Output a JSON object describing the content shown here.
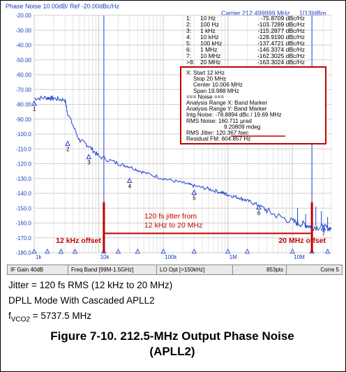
{
  "header": {
    "left": "Phase Noise 10.00dB/ Ref -20.00dBc/Hz",
    "carrier": "Carrier 212.499999 MHz",
    "right": "1[13]dBm"
  },
  "chart_data": {
    "type": "line",
    "x_scale": "log",
    "xlim": [
      1000,
      40000000
    ],
    "ylim": [
      -180,
      -20
    ],
    "yticks": [
      "-20.00",
      "-30.00",
      "-40.00",
      "-50.00",
      "-60.00",
      "-70.00",
      "-80.00",
      "-90.00",
      "-100.0",
      "-110.0",
      "-120.0",
      "-130.0",
      "-140.0",
      "-150.0",
      "-160.0",
      "-170.0",
      "-180.0"
    ],
    "x_tick_labels": [
      "1k",
      "10k",
      "100k",
      "1M",
      "10M"
    ],
    "x": [
      1000,
      1600,
      2000,
      3000,
      3300,
      5000,
      7000,
      10000,
      20000,
      30000,
      50000,
      100000,
      200000,
      300000,
      500000,
      800000,
      1000000,
      1500000,
      2000000,
      3000000,
      5000000,
      10000000,
      15000000,
      20000000,
      30000000,
      40000000
    ],
    "y": [
      -76,
      -75.5,
      -76,
      -77,
      -86,
      -104,
      -108,
      -115,
      -120,
      -122,
      -126,
      -130,
      -133,
      -135,
      -137,
      -139.5,
      -141,
      -143,
      -145,
      -148,
      -154,
      -159,
      -161,
      -162.5,
      -163,
      -163.5
    ],
    "grid": true
  },
  "markers": [
    {
      "id": "1",
      "freq_label": "10 Hz",
      "value": "-75.8709 dBc/Hz"
    },
    {
      "id": "2",
      "freq_label": "100 Hz",
      "value": "-103.7289 dBc/Hz"
    },
    {
      "id": "3",
      "freq_label": "1 kHz",
      "value": "-115.2877 dBc/Hz"
    },
    {
      "id": "4",
      "freq_label": "10 kHz",
      "value": "-128.9190 dBc/Hz"
    },
    {
      "id": "5",
      "freq_label": "100 kHz",
      "value": "-137.4721 dBc/Hz"
    },
    {
      "id": "6",
      "freq_label": "1 MHz",
      "value": "-146.3374 dBc/Hz"
    },
    {
      "id": "7",
      "freq_label": "10 MHz",
      "value": "-162.3025 dBc/Hz"
    },
    {
      "id": ">8",
      "freq_label": "20 MHz",
      "value": "-163.3024 dBc/Hz"
    }
  ],
  "marker_plot_positions": [
    {
      "label": "1",
      "x": 1000,
      "y": -76
    },
    {
      "label": "2",
      "x": 3300,
      "y": -103
    },
    {
      "label": "3",
      "x": 7000,
      "y": -112
    },
    {
      "label": "4",
      "x": 30000,
      "y": -128
    },
    {
      "label": "5",
      "x": 300000,
      "y": -136
    },
    {
      "label": "6",
      "x": 3000000,
      "y": -146
    },
    {
      "label": "7",
      "x": 30000000,
      "y": -160
    }
  ],
  "analysis_box": [
    "X: Start 12 kHz",
    "Stop 20 MHz",
    "Center 10.006 MHz",
    "Span 19.988 MHz",
    "=== Noise ===",
    "Analysis Range X: Band Marker",
    "Analysis Range Y: Band Marker",
    "Intg Noise: -78.8894 dBc / 19.69 MHz",
    "RMS Noise: 160.711 µrad",
    "9.20809 mdeg",
    "RMS Jitter: 120.367 fsec",
    "Residual FM: 604.857 Hz"
  ],
  "annotations": {
    "jitter_note_line1": "120 fs jitter from",
    "jitter_note_line2": "12 kHz to 20 MHz",
    "left_offset": "12 kHz offset",
    "right_offset": "20 MHz offset"
  },
  "status_bar": [
    "IF Gain 40dB",
    "Freq Band [99M-1.5GHz]",
    "LO Opt [>150kHz]",
    "853pts",
    "Corre 5"
  ],
  "caption": {
    "line1": "Jitter = 120 fs RMS (12 kHz to 20 MHz)",
    "line2": "DPLL Mode With Cascaded APLL2",
    "line3_main": "f",
    "line3_sub": "VCO2",
    "line3_value": " = 5737.5 MHz"
  },
  "figure_title": {
    "line1": "Figure 7-10. 212.5-MHz Output Phase Noise",
    "line2": "(APLL2)"
  },
  "colors": {
    "trace": "#1f3fd0",
    "annot": "#c00000",
    "axis_text": "#1a3fbf"
  }
}
